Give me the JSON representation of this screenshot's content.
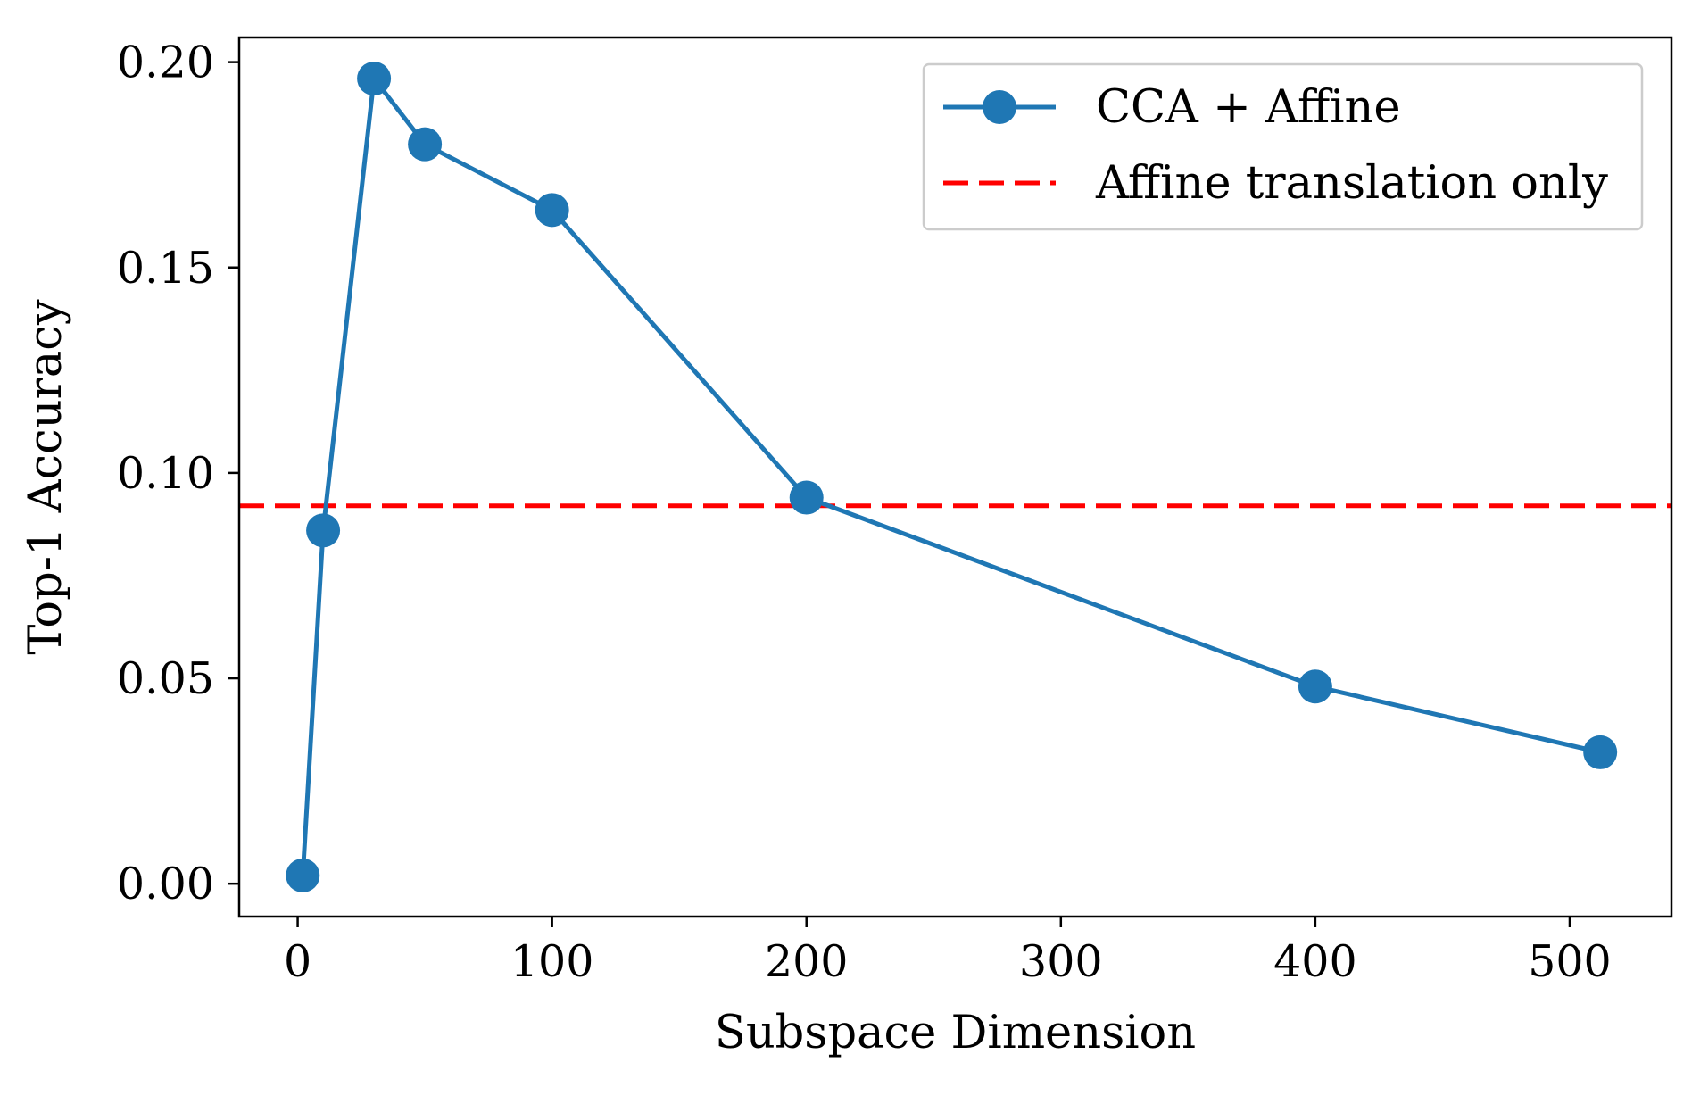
{
  "chart_data": {
    "type": "line",
    "title": "",
    "xlabel": "Subspace Dimension",
    "ylabel": "Top-1 Accuracy",
    "xlim": [
      -23,
      540
    ],
    "ylim": [
      -0.008,
      0.206
    ],
    "xticks": [
      0,
      100,
      200,
      300,
      400,
      500
    ],
    "xtick_labels": [
      "0",
      "100",
      "200",
      "300",
      "400",
      "500"
    ],
    "yticks": [
      0.0,
      0.05,
      0.1,
      0.15,
      0.2
    ],
    "ytick_labels": [
      "0.00",
      "0.05",
      "0.10",
      "0.15",
      "0.20"
    ],
    "grid": false,
    "legend_position": "top-right",
    "series": [
      {
        "name": "CCA + Affine",
        "color": "#1f77b4",
        "marker": "circle",
        "x": [
          2,
          10,
          30,
          50,
          100,
          200,
          400,
          512
        ],
        "y": [
          0.002,
          0.086,
          0.196,
          0.18,
          0.164,
          0.094,
          0.048,
          0.032
        ]
      }
    ],
    "reference_lines": [
      {
        "name": "Affine translation only",
        "orientation": "horizontal",
        "value": 0.092,
        "color": "#ff0000",
        "style": "dashed"
      }
    ]
  }
}
